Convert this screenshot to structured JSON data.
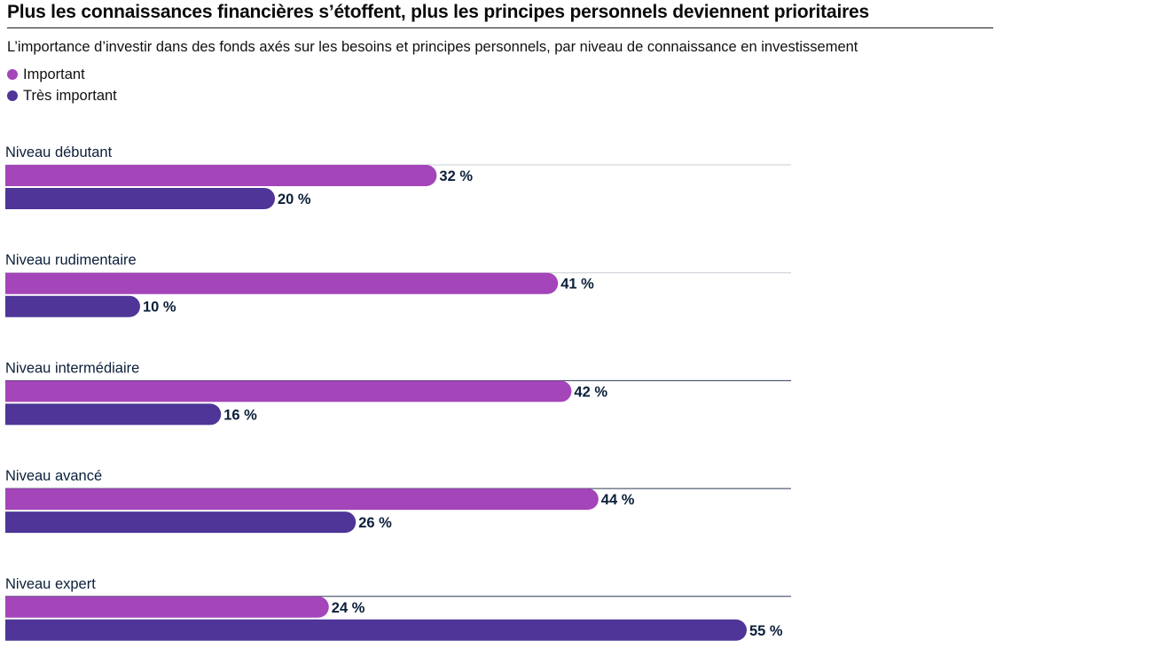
{
  "chart_data": {
    "type": "bar",
    "orientation": "horizontal",
    "title": "Plus les connaissances financières s’étoffent, plus les principes personnels deviennent prioritaires",
    "subtitle": "L’importance d’investir dans des fonds axés sur les besoins et principes personnels, par niveau de connaissance en investissement",
    "categories": [
      "Niveau débutant",
      "Niveau rudimentaire",
      "Niveau intermédiaire",
      "Niveau avancé",
      "Niveau expert"
    ],
    "series": [
      {
        "name": "Important",
        "color": "#a445b9",
        "values": [
          32,
          41,
          42,
          44,
          24
        ],
        "labels": [
          "32 %",
          "41 %",
          "42 %",
          "44 %",
          "24 %"
        ]
      },
      {
        "name": "Très important",
        "color": "#4e3597",
        "values": [
          20,
          10,
          16,
          26,
          55
        ],
        "labels": [
          "20 %",
          "10 %",
          "16 %",
          "26 %",
          "55 %"
        ]
      }
    ],
    "xlim": [
      0,
      58
    ],
    "legend_position": "top-left",
    "grid": false
  }
}
